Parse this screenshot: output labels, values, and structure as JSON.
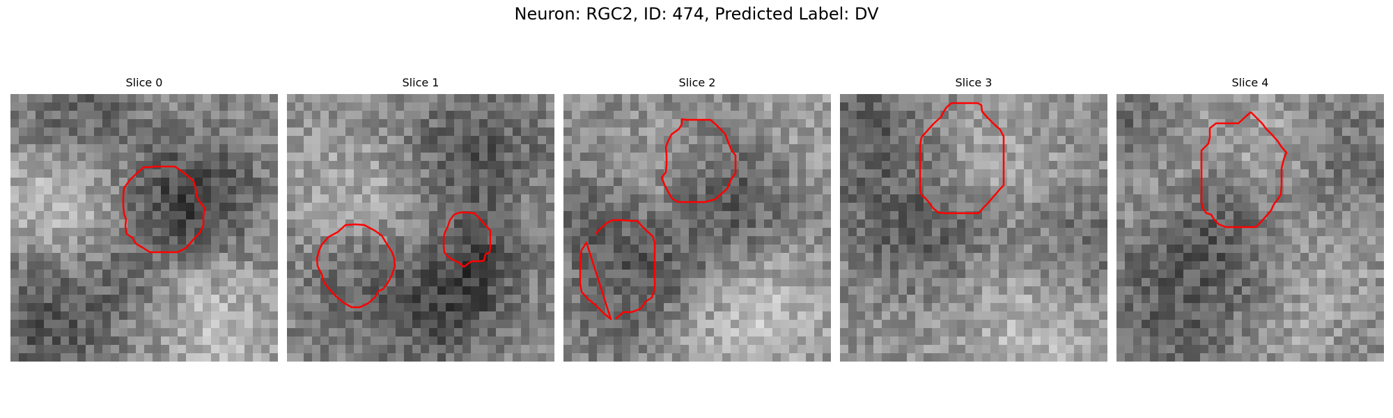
{
  "figure": {
    "title": "Neuron: RGC2, ID: 474, Predicted Label: DV",
    "contour_color": "#ff0000",
    "colormap": "gray"
  },
  "panels": [
    {
      "title": "Slice 0"
    },
    {
      "title": "Slice 1"
    },
    {
      "title": "Slice 2"
    },
    {
      "title": "Slice 3"
    },
    {
      "title": "Slice 4"
    }
  ]
}
